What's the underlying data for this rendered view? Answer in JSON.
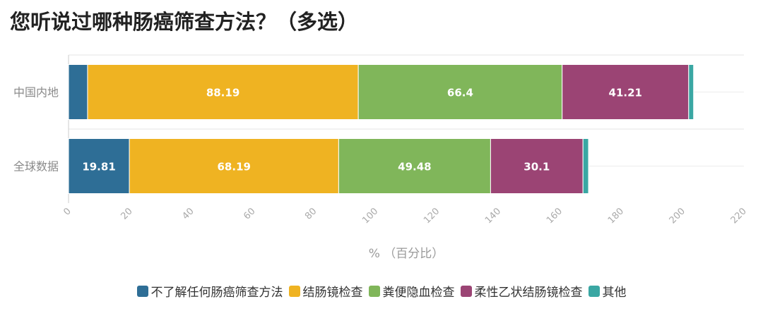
{
  "chart_data": {
    "type": "bar",
    "orientation": "horizontal",
    "stacked": true,
    "title": "您听说过哪种肠癌筛查方法？（多选）",
    "xlabel": "% （百分比）",
    "ylabel": "",
    "xlim": [
      0,
      220
    ],
    "xticks": [
      "0",
      "20",
      "40",
      "60",
      "80",
      "100",
      "120",
      "140",
      "160",
      "180",
      "200",
      "220"
    ],
    "grid": true,
    "legend_position": "bottom-center",
    "categories": [
      "中国内地",
      "全球数据"
    ],
    "series": [
      {
        "name": "不了解任何肠癌筛查方法",
        "color": "#2e6e96",
        "values": [
          6.2,
          19.81
        ],
        "labels": [
          "",
          "19.81"
        ]
      },
      {
        "name": "结肠镜检查",
        "color": "#efb322",
        "values": [
          88.19,
          68.19
        ],
        "labels": [
          "88.19",
          "68.19"
        ]
      },
      {
        "name": "粪便隐血检查",
        "color": "#80b65a",
        "values": [
          66.4,
          49.48
        ],
        "labels": [
          "66.4",
          "49.48"
        ]
      },
      {
        "name": "柔性乙状结肠镜检查",
        "color": "#9b4474",
        "values": [
          41.21,
          30.1
        ],
        "labels": [
          "41.21",
          "30.1"
        ]
      },
      {
        "name": "其他",
        "color": "#3aa7a3",
        "values": [
          1.6,
          1.8
        ],
        "labels": [
          "",
          ""
        ]
      }
    ]
  }
}
